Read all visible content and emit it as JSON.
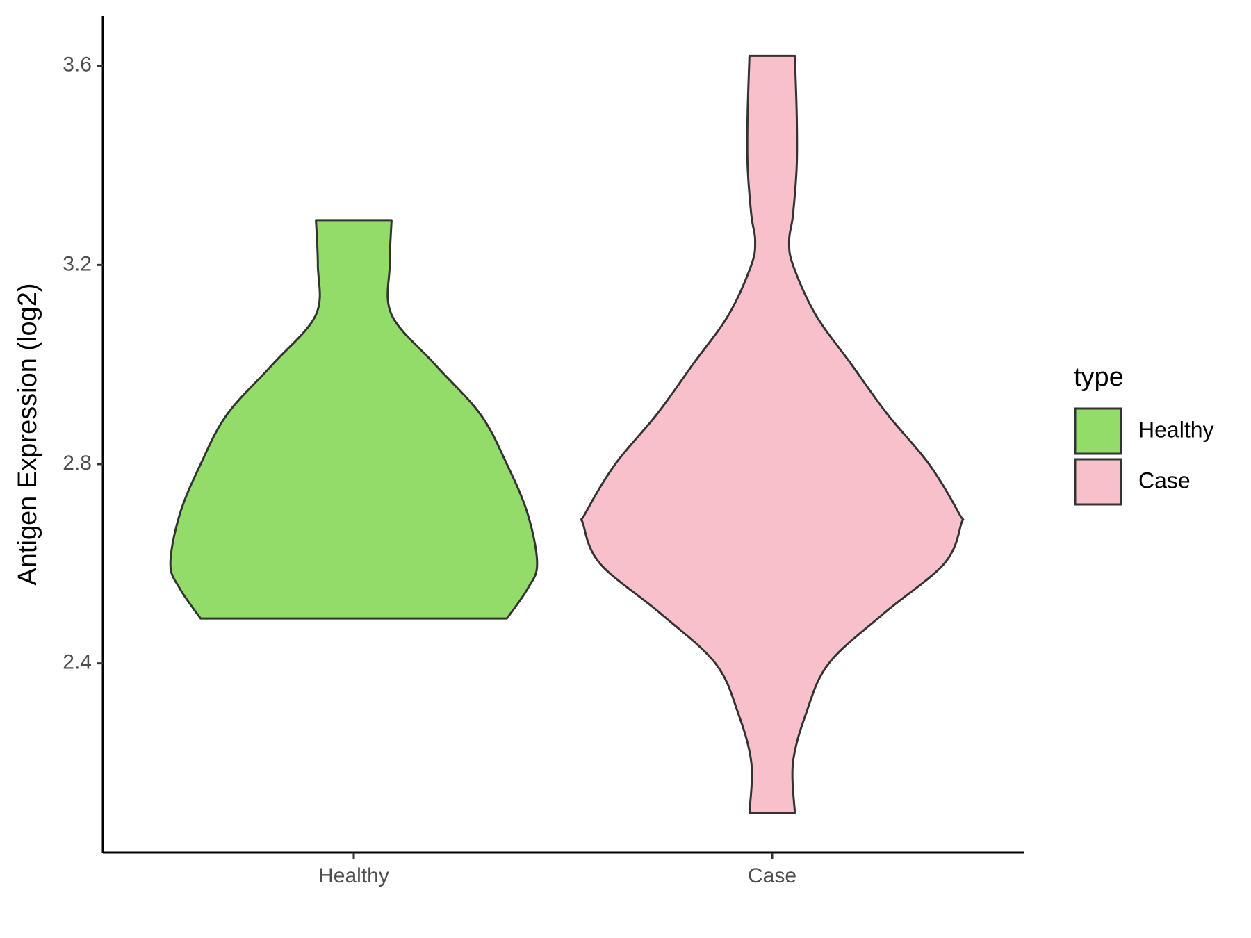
{
  "chart_data": {
    "type": "violin",
    "y_label": "Antigen Expression (log2)",
    "categories": [
      "Healthy",
      "Case"
    ],
    "series": [
      {
        "name": "Healthy",
        "color": "#93dc6a",
        "y": [
          2.49,
          2.55,
          2.6,
          2.7,
          2.8,
          2.9,
          3.0,
          3.1,
          3.2,
          3.29
        ],
        "density": [
          0.81,
          0.92,
          0.97,
          0.92,
          0.81,
          0.67,
          0.43,
          0.2,
          0.19,
          0.2
        ]
      },
      {
        "name": "Case",
        "color": "#f7c0cb",
        "y": [
          2.1,
          2.2,
          2.3,
          2.4,
          2.5,
          2.6,
          2.68,
          2.7,
          2.8,
          2.9,
          3.0,
          3.1,
          3.2,
          3.25,
          3.3,
          3.4,
          3.5,
          3.62
        ],
        "density": [
          0.12,
          0.11,
          0.18,
          0.3,
          0.59,
          0.91,
          1.0,
          0.99,
          0.83,
          0.61,
          0.42,
          0.23,
          0.11,
          0.09,
          0.11,
          0.13,
          0.13,
          0.12
        ]
      }
    ],
    "ylim": [
      2.02,
      3.7
    ],
    "yticks": [
      {
        "value": 2.4,
        "label": "2.4"
      },
      {
        "value": 2.8,
        "label": "2.8"
      },
      {
        "value": 3.2,
        "label": "3.2"
      },
      {
        "value": 3.6,
        "label": "3.6"
      }
    ],
    "legend_title": "type",
    "legend": "right",
    "grid": false
  }
}
